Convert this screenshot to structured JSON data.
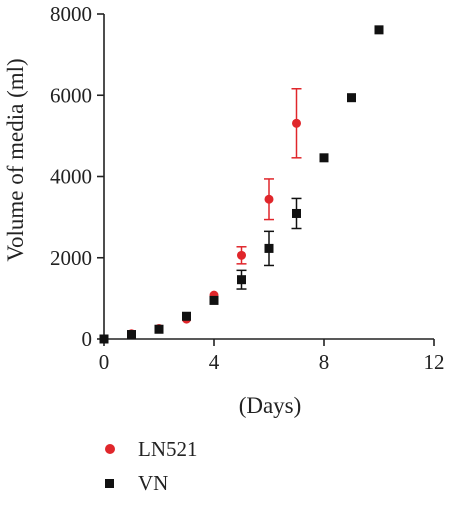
{
  "chart_data": {
    "type": "scatter",
    "title": "",
    "xlabel": "(Days)",
    "ylabel": "Volume of media (ml)",
    "xlim": [
      0,
      12
    ],
    "ylim": [
      0,
      8000
    ],
    "xticks": [
      0,
      4,
      8,
      12
    ],
    "yticks": [
      0,
      2000,
      4000,
      6000,
      8000
    ],
    "xtick_labels": [
      "0",
      "4",
      "8",
      "12"
    ],
    "ytick_labels": [
      "0",
      "2000",
      "4000",
      "6000",
      "8000"
    ],
    "grid": false,
    "legend_position": "bottom-left",
    "series": [
      {
        "name": "LN521",
        "color": "#e0262b",
        "marker": "circle",
        "x": [
          0,
          1,
          2,
          3,
          4,
          5,
          6,
          7
        ],
        "y": [
          0,
          130,
          260,
          490,
          1080,
          2060,
          3440,
          5310
        ],
        "err": [
          0,
          0,
          0,
          0,
          0,
          210,
          500,
          850
        ]
      },
      {
        "name": "VN",
        "color": "#111111",
        "marker": "square",
        "x": [
          0,
          1,
          2,
          3,
          4,
          5,
          6,
          7,
          8,
          9,
          10
        ],
        "y": [
          0,
          110,
          240,
          560,
          950,
          1460,
          2230,
          3090,
          4460,
          5940,
          7610
        ],
        "err": [
          0,
          0,
          0,
          0,
          0,
          230,
          420,
          370,
          0,
          0,
          0
        ]
      }
    ]
  }
}
